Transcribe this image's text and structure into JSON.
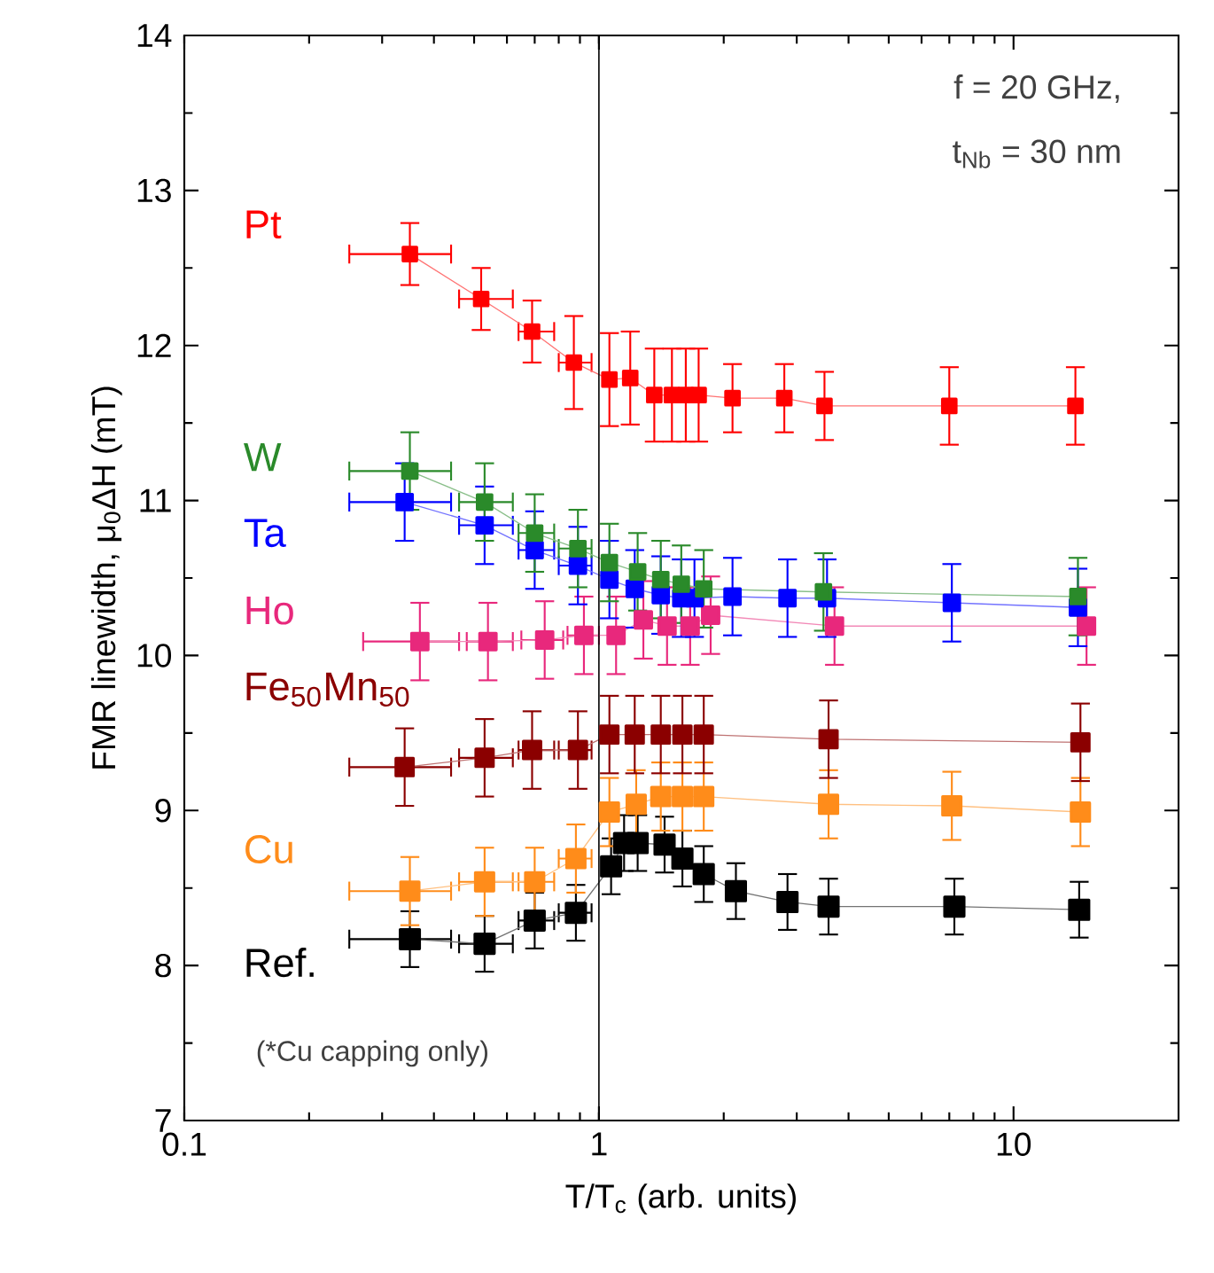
{
  "chart_data": {
    "type": "line",
    "xlabel": "T/T$_{c}$ (arb. units)",
    "ylabel": "FMR linewidth, μ$_{0}$ΔH (mT)",
    "log": "x",
    "xlim": [
      0.1,
      25
    ],
    "xticks": [
      0.1,
      1,
      10
    ],
    "ylim": [
      7,
      14
    ],
    "yticks": [
      7,
      8,
      9,
      10,
      11,
      12,
      13,
      14
    ],
    "marker": "square",
    "legend": "left",
    "annotations": [
      "f = 20 GHz,",
      "t$_{Nb}$ = 30 nm",
      "(*Cu capping only)"
    ],
    "ref_lines": [
      {
        "axis": "x",
        "value": 1,
        "color": "#000000"
      }
    ],
    "series": [
      {
        "name": "Pt",
        "color": "#ff0000",
        "x": [
          0.35,
          0.52,
          0.69,
          0.87,
          1.06,
          1.19,
          1.36,
          1.5,
          1.62,
          1.74,
          2.1,
          2.8,
          3.5,
          7.0,
          14.1
        ],
        "values": [
          12.59,
          12.3,
          12.09,
          11.89,
          11.78,
          11.79,
          11.68,
          11.68,
          11.68,
          11.68,
          11.66,
          11.66,
          11.61,
          11.61,
          11.61
        ],
        "errors": [
          0.2,
          0.2,
          0.2,
          0.3,
          0.3,
          0.3,
          0.3,
          0.3,
          0.3,
          0.3,
          0.22,
          0.22,
          0.22,
          0.25,
          0.25
        ],
        "xerrors": [
          [
            0.25,
            0.44
          ],
          [
            0.46,
            0.62
          ],
          [
            0.64,
            0.78
          ],
          [
            0.8,
            0.96
          ],
          null,
          null,
          null,
          null,
          null,
          null,
          null,
          null,
          null,
          null,
          null
        ]
      },
      {
        "name": "W",
        "color": "#2a8a2a",
        "x": [
          0.35,
          0.53,
          0.7,
          0.89,
          1.06,
          1.24,
          1.41,
          1.58,
          1.79,
          3.48,
          14.3
        ],
        "values": [
          11.19,
          10.99,
          10.79,
          10.69,
          10.6,
          10.54,
          10.49,
          10.46,
          10.43,
          10.41,
          10.38
        ],
        "errors": [
          0.25,
          0.25,
          0.25,
          0.25,
          0.25,
          0.25,
          0.25,
          0.25,
          0.25,
          0.25,
          0.25
        ],
        "xerrors": [
          [
            0.25,
            0.44
          ],
          [
            0.46,
            0.62
          ],
          [
            0.64,
            0.78
          ],
          [
            0.8,
            0.96
          ],
          null,
          null,
          null,
          null,
          null,
          null,
          null
        ]
      },
      {
        "name": "Ta",
        "color": "#0000ff",
        "x": [
          0.34,
          0.53,
          0.7,
          0.89,
          1.06,
          1.22,
          1.41,
          1.58,
          1.7,
          2.1,
          2.85,
          3.55,
          7.1,
          14.3
        ],
        "values": [
          10.99,
          10.84,
          10.68,
          10.58,
          10.49,
          10.43,
          10.39,
          10.37,
          10.37,
          10.38,
          10.37,
          10.37,
          10.34,
          10.31
        ],
        "errors": [
          0.25,
          0.25,
          0.25,
          0.25,
          0.25,
          0.25,
          0.25,
          0.25,
          0.25,
          0.25,
          0.25,
          0.25,
          0.25,
          0.25
        ],
        "xerrors": [
          [
            0.25,
            0.44
          ],
          [
            0.46,
            0.62
          ],
          [
            0.64,
            0.78
          ],
          [
            0.8,
            0.96
          ],
          null,
          null,
          null,
          null,
          null,
          null,
          null,
          null,
          null,
          null
        ]
      },
      {
        "name": "Ho",
        "color": "#e8287c",
        "x": [
          0.37,
          0.54,
          0.74,
          0.92,
          1.1,
          1.28,
          1.46,
          1.66,
          1.86,
          3.7,
          15.0
        ],
        "values": [
          10.09,
          10.09,
          10.1,
          10.13,
          10.13,
          10.23,
          10.19,
          10.19,
          10.26,
          10.19,
          10.19
        ],
        "errors": [
          0.25,
          0.25,
          0.25,
          0.25,
          0.25,
          0.25,
          0.25,
          0.25,
          0.25,
          0.25,
          0.25
        ],
        "xerrors": [
          [
            0.27,
            0.46
          ],
          [
            0.48,
            0.62
          ],
          [
            0.65,
            0.82
          ],
          [
            0.84,
            1.0
          ],
          null,
          null,
          null,
          null,
          null,
          null,
          null
        ]
      },
      {
        "name": "Fe$_{50}$Mn$_{50}$",
        "color": "#8b0000",
        "x": [
          0.34,
          0.53,
          0.69,
          0.89,
          1.06,
          1.22,
          1.41,
          1.59,
          1.79,
          3.58,
          14.5
        ],
        "values": [
          9.28,
          9.34,
          9.39,
          9.39,
          9.49,
          9.49,
          9.49,
          9.49,
          9.49,
          9.46,
          9.44
        ],
        "errors": [
          0.25,
          0.25,
          0.25,
          0.25,
          0.25,
          0.25,
          0.25,
          0.25,
          0.25,
          0.25,
          0.25
        ],
        "xerrors": [
          [
            0.25,
            0.44
          ],
          [
            0.46,
            0.62
          ],
          [
            0.64,
            0.78
          ],
          [
            0.8,
            0.96
          ],
          null,
          null,
          null,
          null,
          null,
          null,
          null
        ]
      },
      {
        "name": "Cu",
        "color": "#ff8c1a",
        "x": [
          0.35,
          0.53,
          0.7,
          0.88,
          1.06,
          1.23,
          1.41,
          1.59,
          1.79,
          3.58,
          7.1,
          14.5
        ],
        "values": [
          8.48,
          8.54,
          8.54,
          8.69,
          8.99,
          9.04,
          9.09,
          9.09,
          9.09,
          9.04,
          9.03,
          8.99
        ],
        "errors": [
          0.22,
          0.22,
          0.22,
          0.22,
          0.22,
          0.22,
          0.22,
          0.22,
          0.22,
          0.22,
          0.22,
          0.22
        ],
        "xerrors": [
          [
            0.25,
            0.44
          ],
          [
            0.46,
            0.62
          ],
          [
            0.64,
            0.78
          ],
          [
            0.8,
            0.96
          ],
          null,
          null,
          null,
          null,
          null,
          null,
          null,
          null
        ]
      },
      {
        "name": "Ref.",
        "color": "#000000",
        "x": [
          0.35,
          0.53,
          0.7,
          0.88,
          1.07,
          1.15,
          1.24,
          1.44,
          1.59,
          1.79,
          2.14,
          2.85,
          3.58,
          7.2,
          14.4
        ],
        "values": [
          8.17,
          8.14,
          8.29,
          8.34,
          8.64,
          8.79,
          8.79,
          8.78,
          8.69,
          8.59,
          8.48,
          8.41,
          8.38,
          8.38,
          8.36
        ],
        "errors": [
          0.18,
          0.18,
          0.18,
          0.18,
          0.18,
          0.18,
          0.18,
          0.18,
          0.18,
          0.18,
          0.18,
          0.18,
          0.18,
          0.18,
          0.18
        ],
        "xerrors": [
          [
            0.25,
            0.44
          ],
          [
            0.46,
            0.62
          ],
          [
            0.64,
            0.78
          ],
          [
            0.8,
            0.96
          ],
          null,
          null,
          null,
          null,
          null,
          null,
          null,
          null,
          null,
          null,
          null
        ]
      }
    ]
  }
}
